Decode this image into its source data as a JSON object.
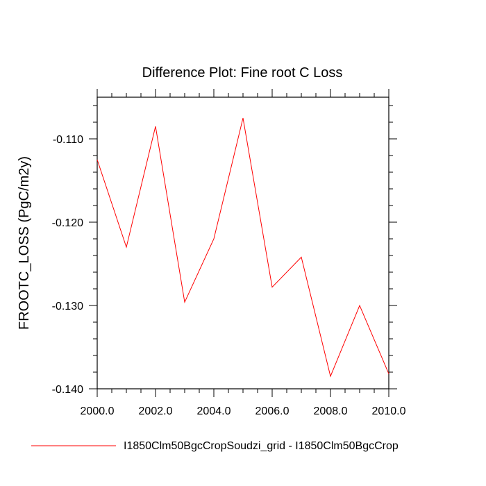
{
  "chart_data": {
    "type": "line",
    "title": "Difference Plot: Fine root C Loss",
    "xlabel": "",
    "ylabel": "FROOTC_LOSS  (PgC/m2y)",
    "xlim": [
      2000,
      2010
    ],
    "ylim": [
      -0.14,
      -0.105
    ],
    "x_ticks": [
      2000,
      2002,
      2004,
      2006,
      2008,
      2010
    ],
    "x_tick_labels": [
      "2000.0",
      "2002.0",
      "2004.0",
      "2006.0",
      "2008.0",
      "2010.0"
    ],
    "y_ticks": [
      -0.11,
      -0.12,
      -0.13,
      -0.14
    ],
    "y_tick_labels": [
      "-0.110",
      "-0.120",
      "-0.130",
      "-0.140"
    ],
    "grid": false,
    "legend_position": "bottom",
    "series": [
      {
        "name": "I1850Clm50BgcCropSoudzi_grid - I1850Clm50BgcCrop",
        "color": "#ff0000",
        "x": [
          2000,
          2001,
          2002,
          2003,
          2004,
          2005,
          2006,
          2007,
          2008,
          2009,
          2010
        ],
        "y": [
          -0.1125,
          -0.123,
          -0.1085,
          -0.1296,
          -0.122,
          -0.1075,
          -0.1278,
          -0.1242,
          -0.1385,
          -0.13,
          -0.1382
        ]
      }
    ]
  }
}
